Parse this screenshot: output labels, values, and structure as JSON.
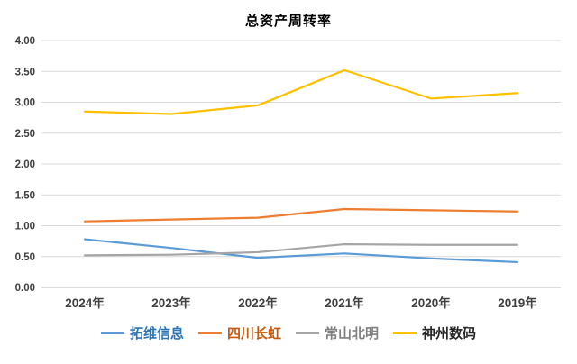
{
  "chart_data": {
    "type": "line",
    "title": "总资产周转率",
    "categories": [
      "2024年",
      "2023年",
      "2022年",
      "2021年",
      "2020年",
      "2019年"
    ],
    "series": [
      {
        "name": "拓维信息",
        "values": [
          0.78,
          0.64,
          0.48,
          0.55,
          0.47,
          0.41
        ],
        "color": "#5b9bd5",
        "label_color": "#2e75b6"
      },
      {
        "name": "四川长虹",
        "values": [
          1.07,
          1.1,
          1.13,
          1.27,
          1.25,
          1.23
        ],
        "color": "#ed7d31",
        "label_color": "#c55a11"
      },
      {
        "name": "常山北明",
        "values": [
          0.52,
          0.53,
          0.57,
          0.7,
          0.69,
          0.69
        ],
        "color": "#a5a5a5",
        "label_color": "#808080"
      },
      {
        "name": "神州数码",
        "values": [
          2.85,
          2.81,
          2.95,
          3.52,
          3.06,
          3.15
        ],
        "color": "#ffc000",
        "label_color": "#262626"
      }
    ],
    "ylim": [
      0,
      4
    ],
    "ytick_step": 0.5,
    "ytick_format_decimals": 2,
    "grid": "horizontal",
    "legend_position": "bottom",
    "gridline_color": "#d9d9d9",
    "axis_line_color": "#bfbfbf",
    "tick_label_color": "#404040",
    "xlabel": "",
    "ylabel": ""
  }
}
